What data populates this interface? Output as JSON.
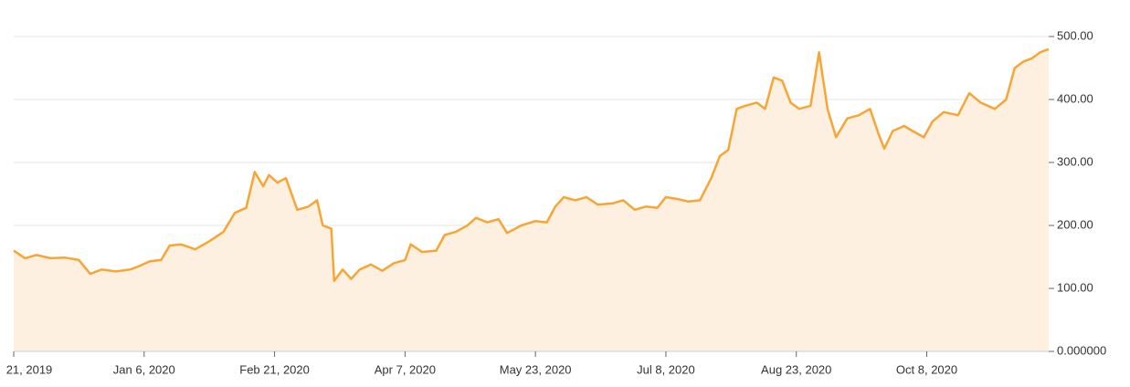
{
  "chart_data": {
    "type": "area",
    "x": [
      "2019-11-21",
      "2019-11-25",
      "2019-11-29",
      "2019-12-04",
      "2019-12-09",
      "2019-12-14",
      "2019-12-18",
      "2019-12-22",
      "2019-12-27",
      "2020-01-01",
      "2020-01-04",
      "2020-01-08",
      "2020-01-12",
      "2020-01-15",
      "2020-01-19",
      "2020-01-24",
      "2020-01-29",
      "2020-02-03",
      "2020-02-07",
      "2020-02-11",
      "2020-02-14",
      "2020-02-17",
      "2020-02-19",
      "2020-02-22",
      "2020-02-25",
      "2020-02-29",
      "2020-03-04",
      "2020-03-07",
      "2020-03-09",
      "2020-03-12",
      "2020-03-13",
      "2020-03-16",
      "2020-03-19",
      "2020-03-22",
      "2020-03-26",
      "2020-03-30",
      "2020-04-03",
      "2020-04-07",
      "2020-04-09",
      "2020-04-13",
      "2020-04-18",
      "2020-04-21",
      "2020-04-25",
      "2020-04-29",
      "2020-05-02",
      "2020-05-06",
      "2020-05-10",
      "2020-05-13",
      "2020-05-18",
      "2020-05-23",
      "2020-05-27",
      "2020-05-30",
      "2020-06-02",
      "2020-06-06",
      "2020-06-10",
      "2020-06-14",
      "2020-06-19",
      "2020-06-23",
      "2020-06-27",
      "2020-07-01",
      "2020-07-05",
      "2020-07-08",
      "2020-07-12",
      "2020-07-16",
      "2020-07-20",
      "2020-07-24",
      "2020-07-27",
      "2020-07-30",
      "2020-08-02",
      "2020-08-05",
      "2020-08-09",
      "2020-08-12",
      "2020-08-15",
      "2020-08-18",
      "2020-08-21",
      "2020-08-24",
      "2020-08-28",
      "2020-08-31",
      "2020-09-03",
      "2020-09-06",
      "2020-09-10",
      "2020-09-14",
      "2020-09-18",
      "2020-09-21",
      "2020-09-23",
      "2020-09-26",
      "2020-09-30",
      "2020-10-03",
      "2020-10-07",
      "2020-10-10",
      "2020-10-14",
      "2020-10-19",
      "2020-10-23",
      "2020-10-27",
      "2020-11-01",
      "2020-11-05",
      "2020-11-08",
      "2020-11-11",
      "2020-11-14",
      "2020-11-17",
      "2020-11-20"
    ],
    "series": [
      {
        "color": "#f7a635",
        "fill": "#fdf0e0",
        "values": [
          160,
          148,
          153,
          148,
          149,
          145,
          123,
          130,
          127,
          130,
          135,
          143,
          145,
          168,
          170,
          162,
          175,
          190,
          220,
          228,
          285,
          262,
          280,
          268,
          275,
          225,
          230,
          240,
          200,
          195,
          112,
          130,
          115,
          130,
          138,
          128,
          140,
          145,
          170,
          158,
          160,
          185,
          190,
          200,
          212,
          205,
          210,
          188,
          200,
          207,
          205,
          230,
          245,
          240,
          245,
          233,
          235,
          240,
          225,
          230,
          228,
          245,
          242,
          238,
          240,
          275,
          310,
          320,
          385,
          390,
          395,
          385,
          435,
          430,
          395,
          385,
          390,
          475,
          385,
          340,
          370,
          375,
          385,
          345,
          322,
          350,
          358,
          350,
          340,
          365,
          380,
          375,
          410,
          395,
          385,
          400,
          450,
          460,
          465,
          475,
          480
        ]
      }
    ],
    "xlim": [
      "2019-11-21",
      "2020-11-20"
    ],
    "xticks": [
      {
        "value": "2019-11-21",
        "label": "21, 2019"
      },
      {
        "value": "2020-01-06",
        "label": "Jan 6, 2020"
      },
      {
        "value": "2020-02-21",
        "label": "Feb 21, 2020"
      },
      {
        "value": "2020-04-07",
        "label": "Apr 7, 2020"
      },
      {
        "value": "2020-05-23",
        "label": "May 23, 2020"
      },
      {
        "value": "2020-07-08",
        "label": "Jul 8, 2020"
      },
      {
        "value": "2020-08-23",
        "label": "Aug 23, 2020"
      },
      {
        "value": "2020-10-08",
        "label": "Oct 8, 2020"
      }
    ],
    "ylim": [
      0,
      500
    ],
    "yticks": [
      {
        "value": 0,
        "label": "0.000000"
      },
      {
        "value": 100,
        "label": "100.00"
      },
      {
        "value": 200,
        "label": "200.00"
      },
      {
        "value": 300,
        "label": "300.00"
      },
      {
        "value": 400,
        "label": "400.00"
      },
      {
        "value": 500,
        "label": "500.00"
      }
    ],
    "grid": true
  }
}
